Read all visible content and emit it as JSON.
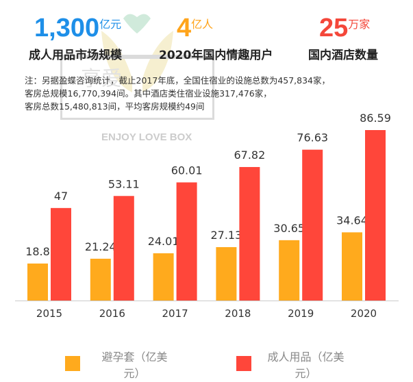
{
  "watermark": {
    "cn_text": "享爱",
    "en_text": "ENJOY LOVE BOX"
  },
  "stats": [
    {
      "value": "1,300",
      "unit": "亿元",
      "label": "成人用品市场规模",
      "color": "#1E8FE8"
    },
    {
      "value": "4",
      "unit": "亿人",
      "label": "2020年国内情趣用户",
      "color": "#FFA41B"
    },
    {
      "value": "25",
      "unit": "万家",
      "label": "国内酒店数量",
      "color": "#F4473A"
    }
  ],
  "note": [
    "注：另据盈蝶咨询统计，截止2017年底，全国住宿业的设施总数为457,834家，",
    "客房总规模16,770,394间。其中酒店类住宿业设施317,476家，",
    "客房总数15,480,813间，平均客房规模约49间"
  ],
  "chart_data": {
    "type": "bar",
    "categories": [
      "2015",
      "2016",
      "2017",
      "2018",
      "2019",
      "2020"
    ],
    "series": [
      {
        "name": "避孕套（亿美元）",
        "values": [
          18.8,
          21.24,
          24.01,
          27.13,
          30.65,
          34.64
        ],
        "labels": [
          "18.8",
          "21.24",
          "24.01",
          "27.13",
          "30.65",
          "34.64"
        ],
        "color": "#FFAA1D"
      },
      {
        "name": "成人用品（亿美元）",
        "values": [
          47,
          53.11,
          60.01,
          67.82,
          76.63,
          86.59
        ],
        "labels": [
          "47",
          "53.11",
          "60.01",
          "67.82",
          "76.63",
          "86.59"
        ],
        "color": "#FF463A"
      }
    ],
    "ylim": [
      0,
      90
    ],
    "grid": false,
    "legend": "bottom"
  }
}
